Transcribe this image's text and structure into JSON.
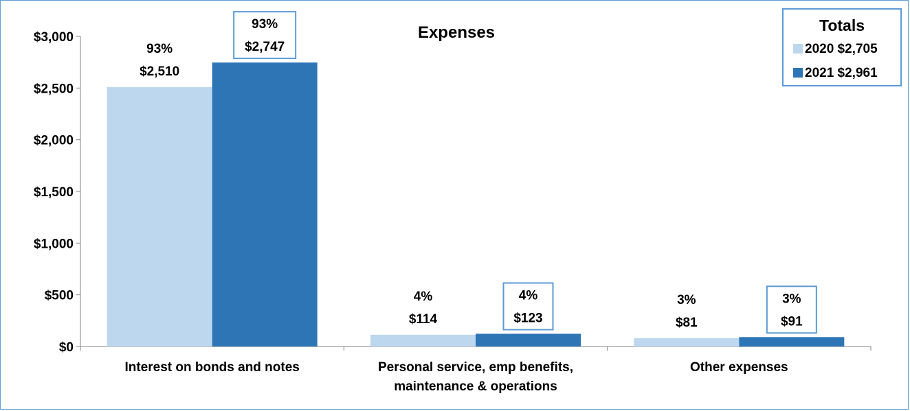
{
  "chart_data": {
    "type": "bar",
    "title": "Expenses",
    "categories": [
      [
        "Interest on bonds and notes"
      ],
      [
        "Personal service, emp benefits,",
        "maintenance & operations"
      ],
      [
        "Other expenses"
      ]
    ],
    "series": [
      {
        "name": "2020",
        "values": [
          2510,
          114,
          81
        ],
        "labels": [
          "$2,510",
          "$114",
          "$81"
        ],
        "pct": [
          "93%",
          "4%",
          "3%"
        ],
        "color": "#bdd7ee",
        "boxed": false
      },
      {
        "name": "2021",
        "values": [
          2747,
          123,
          91
        ],
        "labels": [
          "$2,747",
          "$123",
          "$91"
        ],
        "pct": [
          "93%",
          "4%",
          "3%"
        ],
        "color": "#2e75b6",
        "boxed": true
      }
    ],
    "ylim": [
      0,
      3000
    ],
    "yticks": [
      0,
      500,
      1000,
      1500,
      2000,
      2500,
      3000
    ],
    "ytick_labels": [
      "$0",
      "$500",
      "$1,000",
      "$1,500",
      "$2,000",
      "$2,500",
      "$3,000"
    ],
    "xlabel": "",
    "ylabel": "",
    "grid": false,
    "legend": {
      "title": "Totals",
      "placement": "top-right",
      "entries": [
        {
          "label": "2020 $2,705",
          "color": "#bdd7ee"
        },
        {
          "label": "2021 $2,961",
          "color": "#2e75b6"
        }
      ]
    },
    "accent_color": "#5b9bd5"
  }
}
